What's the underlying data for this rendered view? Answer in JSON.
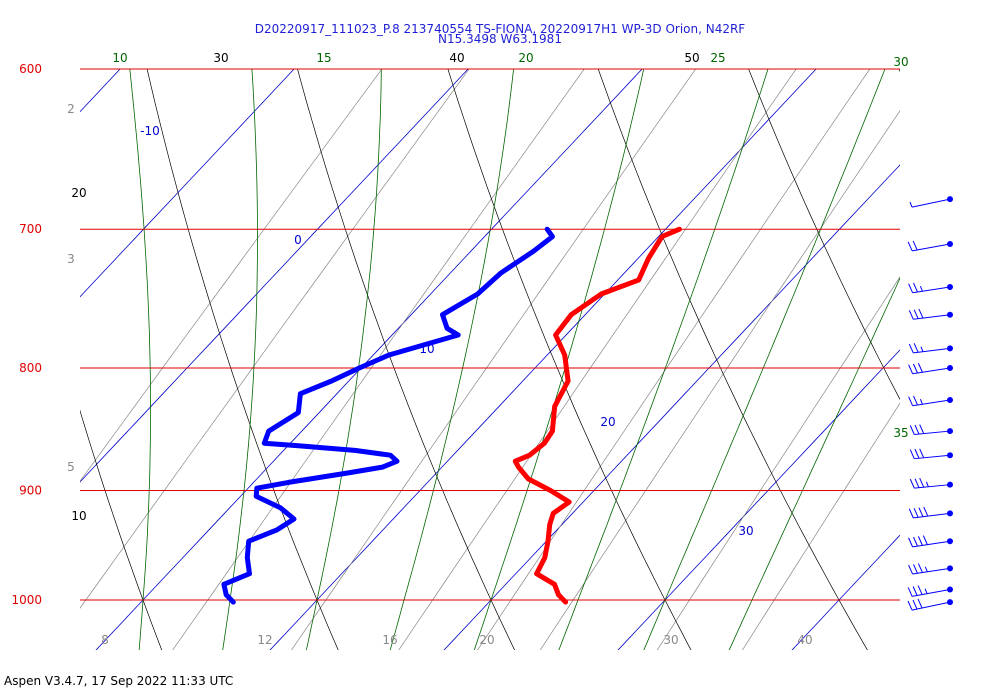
{
  "title_line1": "D20220917_111023_P.8 213740554 TS-FIONA, 20220917H1 WP-3D Orion, N42RF",
  "title_line2": "N15.3498 W63.1981",
  "footer": "Aspen V3.4.7, 17 Sep 2022  11:33 UTC",
  "colors": {
    "pressure": "#e00000",
    "temperature": "#ff0000",
    "dewpoint": "#0000ff",
    "dry_adiabat": "#000000",
    "moist_adiabat": "#006600",
    "mixing_ratio": "#888888",
    "isotherm": "#0000cc",
    "wind_barb": "#0000ff"
  },
  "chart_data": {
    "type": "skew-t",
    "pressure_levels": [
      {
        "p": 600,
        "label": "600"
      },
      {
        "p": 700,
        "label": "700"
      },
      {
        "p": 800,
        "label": "800"
      },
      {
        "p": 900,
        "label": "900"
      },
      {
        "p": 1000,
        "label": "1000"
      }
    ],
    "isotherm_labels": [
      "-10",
      "0",
      "10",
      "20",
      "30"
    ],
    "dry_adiabat_labels": [
      "30",
      "40",
      "50",
      "20",
      "10"
    ],
    "moist_adiabat_labels": [
      "10",
      "15",
      "20",
      "25",
      "30",
      "35"
    ],
    "mixing_ratio_top_labels": [
      "2",
      "3",
      "5"
    ],
    "mixing_ratio_bottom_labels": [
      "8",
      "12",
      "16",
      "20",
      "30",
      "40"
    ],
    "temperature_profile": [
      {
        "p": 700,
        "t": 10.8
      },
      {
        "p": 705,
        "t": 10.2
      },
      {
        "p": 720,
        "t": 10.6
      },
      {
        "p": 735,
        "t": 11.2
      },
      {
        "p": 745,
        "t": 9.8
      },
      {
        "p": 760,
        "t": 9.2
      },
      {
        "p": 775,
        "t": 9.4
      },
      {
        "p": 790,
        "t": 11.0
      },
      {
        "p": 810,
        "t": 12.6
      },
      {
        "p": 830,
        "t": 13.2
      },
      {
        "p": 850,
        "t": 14.4
      },
      {
        "p": 860,
        "t": 14.6
      },
      {
        "p": 870,
        "t": 14.4
      },
      {
        "p": 875,
        "t": 13.9
      },
      {
        "p": 880,
        "t": 14.4
      },
      {
        "p": 890,
        "t": 15.6
      },
      {
        "p": 900,
        "t": 17.5
      },
      {
        "p": 910,
        "t": 19.2
      },
      {
        "p": 920,
        "t": 18.9
      },
      {
        "p": 930,
        "t": 19.3
      },
      {
        "p": 945,
        "t": 20.1
      },
      {
        "p": 960,
        "t": 20.8
      },
      {
        "p": 975,
        "t": 21.2
      },
      {
        "p": 985,
        "t": 22.8
      },
      {
        "p": 995,
        "t": 23.6
      },
      {
        "p": 1002,
        "t": 24.4
      }
    ],
    "dewpoint_profile": [
      {
        "p": 700,
        "t": 3.2
      },
      {
        "p": 705,
        "t": 3.9
      },
      {
        "p": 715,
        "t": 3.6
      },
      {
        "p": 730,
        "t": 2.9
      },
      {
        "p": 745,
        "t": 2.7
      },
      {
        "p": 760,
        "t": 1.8
      },
      {
        "p": 770,
        "t": 2.8
      },
      {
        "p": 775,
        "t": 3.8
      },
      {
        "p": 790,
        "t": 0.9
      },
      {
        "p": 800,
        "t": -0.1
      },
      {
        "p": 810,
        "t": -1.0
      },
      {
        "p": 820,
        "t": -2.1
      },
      {
        "p": 835,
        "t": -1.2
      },
      {
        "p": 850,
        "t": -1.9
      },
      {
        "p": 860,
        "t": -1.5
      },
      {
        "p": 862,
        "t": 0.5
      },
      {
        "p": 866,
        "t": 4.1
      },
      {
        "p": 870,
        "t": 6.4
      },
      {
        "p": 875,
        "t": 7.1
      },
      {
        "p": 880,
        "t": 6.6
      },
      {
        "p": 885,
        "t": 4.9
      },
      {
        "p": 893,
        "t": 2.0
      },
      {
        "p": 898,
        "t": 0.5
      },
      {
        "p": 905,
        "t": 0.9
      },
      {
        "p": 915,
        "t": 2.9
      },
      {
        "p": 925,
        "t": 4.3
      },
      {
        "p": 935,
        "t": 3.9
      },
      {
        "p": 945,
        "t": 2.9
      },
      {
        "p": 960,
        "t": 3.7
      },
      {
        "p": 975,
        "t": 4.7
      },
      {
        "p": 985,
        "t": 3.8
      },
      {
        "p": 995,
        "t": 4.5
      },
      {
        "p": 1002,
        "t": 5.3
      }
    ],
    "wind_barbs": [
      {
        "p": 680,
        "dir": 90,
        "speed": 5
      },
      {
        "p": 710,
        "dir": 95,
        "speed": 20
      },
      {
        "p": 740,
        "dir": 100,
        "speed": 25
      },
      {
        "p": 760,
        "dir": 105,
        "speed": 30
      },
      {
        "p": 785,
        "dir": 105,
        "speed": 25
      },
      {
        "p": 800,
        "dir": 100,
        "speed": 30
      },
      {
        "p": 825,
        "dir": 100,
        "speed": 25
      },
      {
        "p": 850,
        "dir": 110,
        "speed": 30
      },
      {
        "p": 870,
        "dir": 110,
        "speed": 30
      },
      {
        "p": 895,
        "dir": 110,
        "speed": 35
      },
      {
        "p": 920,
        "dir": 105,
        "speed": 40
      },
      {
        "p": 945,
        "dir": 100,
        "speed": 40
      },
      {
        "p": 970,
        "dir": 100,
        "speed": 35
      },
      {
        "p": 990,
        "dir": 95,
        "speed": 35
      },
      {
        "p": 1002,
        "dir": 90,
        "speed": 30
      }
    ]
  }
}
